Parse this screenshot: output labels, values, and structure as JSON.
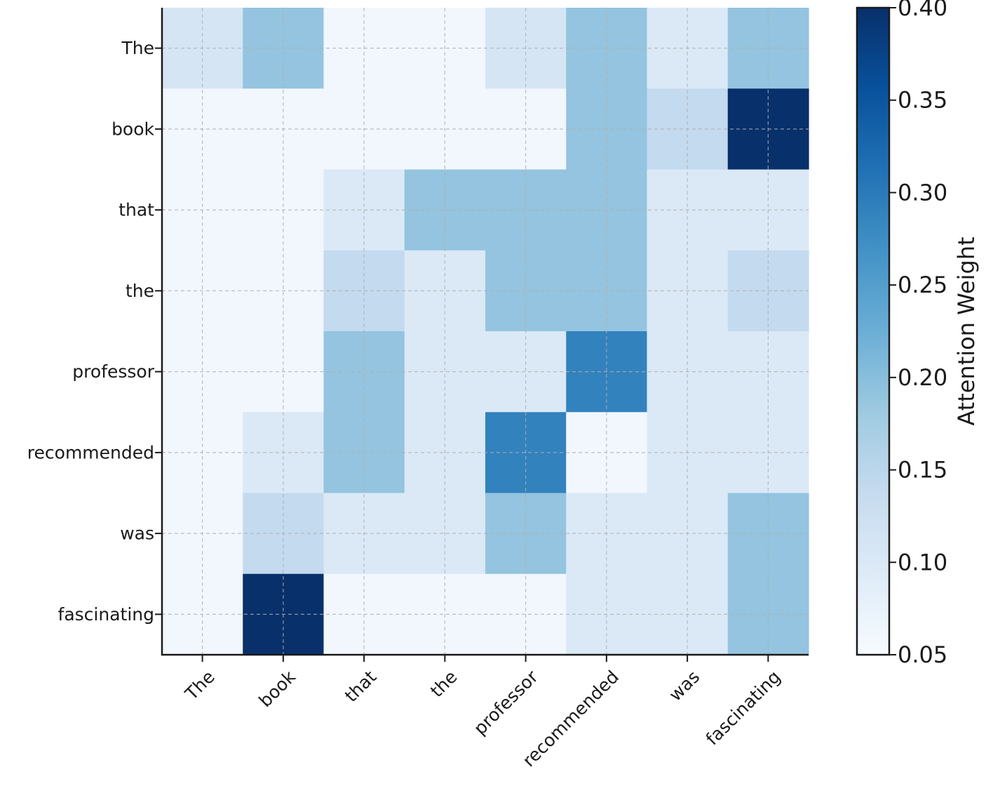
{
  "chart_data": {
    "type": "heatmap",
    "title": "",
    "xlabel": "",
    "ylabel": "",
    "x_categories": [
      "The",
      "book",
      "that",
      "the",
      "professor",
      "recommended",
      "was",
      "fascinating"
    ],
    "y_categories": [
      "The",
      "book",
      "that",
      "the",
      "professor",
      "recommended",
      "was",
      "fascinating"
    ],
    "values": [
      [
        0.11,
        0.19,
        0.06,
        0.06,
        0.11,
        0.19,
        0.1,
        0.19
      ],
      [
        0.06,
        0.06,
        0.06,
        0.06,
        0.06,
        0.19,
        0.14,
        0.4
      ],
      [
        0.06,
        0.06,
        0.1,
        0.19,
        0.19,
        0.19,
        0.1,
        0.1
      ],
      [
        0.06,
        0.06,
        0.14,
        0.1,
        0.19,
        0.19,
        0.1,
        0.14
      ],
      [
        0.06,
        0.06,
        0.19,
        0.1,
        0.1,
        0.29,
        0.1,
        0.1
      ],
      [
        0.06,
        0.1,
        0.19,
        0.1,
        0.29,
        0.06,
        0.1,
        0.1
      ],
      [
        0.06,
        0.14,
        0.1,
        0.1,
        0.19,
        0.1,
        0.1,
        0.19
      ],
      [
        0.06,
        0.4,
        0.06,
        0.06,
        0.06,
        0.1,
        0.1,
        0.19
      ]
    ],
    "colormap": "Blues",
    "colormap_stops": [
      "#f7fbff",
      "#deebf7",
      "#c6dbef",
      "#9ecae1",
      "#6baed6",
      "#4292c6",
      "#2171b5",
      "#08519c",
      "#08306b"
    ],
    "vmin": 0.05,
    "vmax": 0.4,
    "grid": true,
    "colorbar": {
      "label": "Attention Weight",
      "ticks": [
        0.05,
        0.1,
        0.15,
        0.2,
        0.25,
        0.3,
        0.35,
        0.4
      ],
      "tick_labels": [
        "0.05",
        "0.10",
        "0.15",
        "0.20",
        "0.25",
        "0.30",
        "0.35",
        "0.40"
      ]
    }
  }
}
